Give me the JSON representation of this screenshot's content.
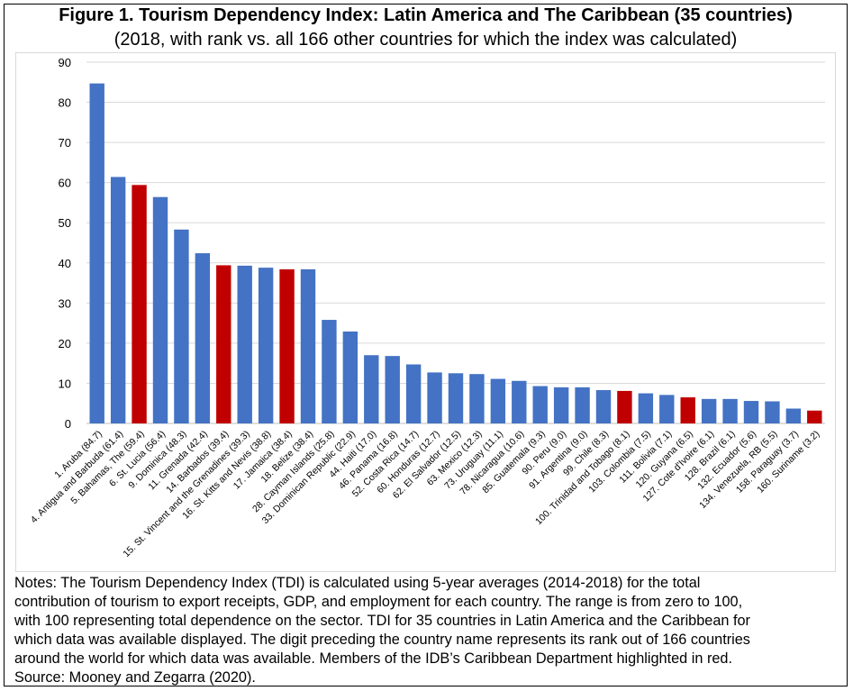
{
  "title": "Figure 1. Tourism Dependency Index: Latin America and The Caribbean (35 countries)",
  "subtitle": "(2018, with rank vs. all 166 other countries for which the index was calculated)",
  "notes": [
    "Notes: The Tourism Dependency Index (TDI) is calculated using 5-year averages (2014-2018) for the total",
    "contribution of tourism to export receipts, GDP, and employment for each country. The range is from zero to 100,",
    "with 100 representing total dependence on the sector. TDI for 35 countries in Latin America and the Caribbean for",
    "which data was available displayed. The digit preceding the country name represents its rank out of 166 countries",
    "around the world for which data was available. Members of the IDB’s Caribbean Department highlighted in red.",
    "Source: Mooney and Zegarra (2020)."
  ],
  "colors": {
    "default_bar": "#4472C4",
    "highlight_bar": "#C00000",
    "grid": "#d9d9d9"
  },
  "chart_data": {
    "type": "bar",
    "ylim": [
      0,
      90
    ],
    "yticks": [
      0,
      10,
      20,
      30,
      40,
      50,
      60,
      70,
      80,
      90
    ],
    "grid": true,
    "categories": [
      "1. Aruba (84.7)",
      "4. Antigua and Barbuda (61.4)",
      "5. Bahamas, The (59.4)",
      "6. St. Lucia (56.4)",
      "9. Dominica (48.3)",
      "11. Grenada (42.4)",
      "14. Barbados (39.4)",
      "15. St. Vincent and the Grenadines (39.3)",
      "16. St. Kitts and Nevis (38.8)",
      "17. Jamaica (38.4)",
      "18. Belize (38.4)",
      "28. Cayman Islands (25.8)",
      "33. Dominican Republic (22.9)",
      "44. Haiti (17.0)",
      "46. Panama (16.8)",
      "52. Costa Rica (14.7)",
      "60. Honduras (12.7)",
      "62. El Salvador (12.5)",
      "63. Mexico (12.3)",
      "73. Uruguay (11.1)",
      "78. Nicaragua (10.6)",
      "85. Guatemala (9.3)",
      "90. Peru (9.0)",
      "91. Argentina (9.0)",
      "99. Chile (8.3)",
      "100. Trinidad and Tobago (8.1)",
      "103. Colombia (7.5)",
      "111. Bolivia (7.1)",
      "120. Guyana (6.5)",
      "127. Cote d'Ivoire (6.1)",
      "128. Brazil (6.1)",
      "132. Ecuador (5.6)",
      "134. Venezuela, RB (5.5)",
      "158. Paraguay (3.7)",
      "160. Suriname (3.2)"
    ],
    "values": [
      84.7,
      61.4,
      59.4,
      56.4,
      48.3,
      42.4,
      39.4,
      39.3,
      38.8,
      38.4,
      38.4,
      25.8,
      22.9,
      17.0,
      16.8,
      14.7,
      12.7,
      12.5,
      12.3,
      11.1,
      10.6,
      9.3,
      9.0,
      9.0,
      8.3,
      8.1,
      7.5,
      7.1,
      6.5,
      6.1,
      6.1,
      5.6,
      5.5,
      3.7,
      3.2
    ],
    "highlighted": [
      false,
      false,
      true,
      false,
      false,
      false,
      true,
      false,
      false,
      true,
      false,
      false,
      false,
      false,
      false,
      false,
      false,
      false,
      false,
      false,
      false,
      false,
      false,
      false,
      false,
      true,
      false,
      false,
      true,
      false,
      false,
      false,
      false,
      false,
      true
    ]
  }
}
